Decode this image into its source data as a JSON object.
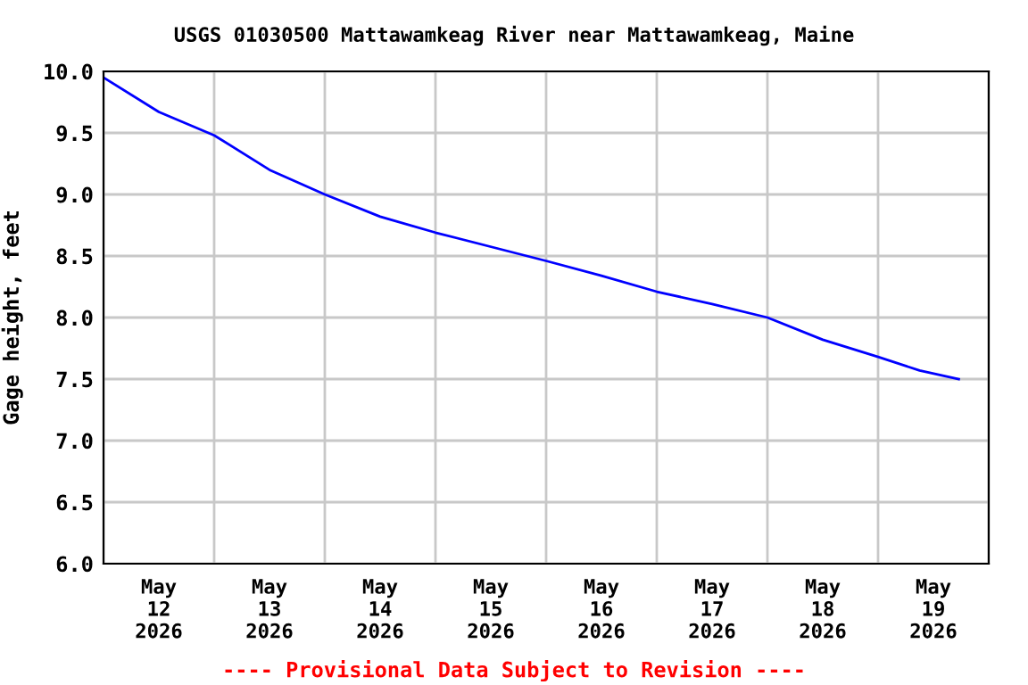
{
  "chart_data": {
    "type": "line",
    "title": "USGS 01030500 Mattawamkeag River near Mattawamkeag, Maine",
    "ylabel": "Gage height, feet",
    "x": [
      "2026-05-12T00:00",
      "2026-05-12T12:00",
      "2026-05-13T00:00",
      "2026-05-13T12:00",
      "2026-05-14T00:00",
      "2026-05-14T12:00",
      "2026-05-15T00:00",
      "2026-05-15T17:45",
      "2026-05-16T00:00",
      "2026-05-16T12:00",
      "2026-05-17T00:00",
      "2026-05-17T12:00",
      "2026-05-18T00:00",
      "2026-05-18T12:00",
      "2026-05-19T00:00",
      "2026-05-19T09:00",
      "2026-05-19T17:30"
    ],
    "series": [
      {
        "color": "#0000ff",
        "values": [
          9.95,
          9.67,
          9.48,
          9.2,
          9.0,
          8.82,
          8.69,
          8.52,
          8.46,
          8.34,
          8.21,
          8.11,
          8.0,
          7.82,
          7.68,
          7.57,
          7.5
        ]
      }
    ],
    "xlim": [
      "2026-05-12T00:00",
      "2026-05-20T00:00"
    ],
    "xticks": [
      {
        "value": "2026-05-12T00:00",
        "label": null
      },
      {
        "value": "2026-05-12T12:00",
        "label": "May\n12\n2026"
      },
      {
        "value": "2026-05-13T00:00",
        "label": null
      },
      {
        "value": "2026-05-13T12:00",
        "label": "May\n13\n2026"
      },
      {
        "value": "2026-05-14T00:00",
        "label": null
      },
      {
        "value": "2026-05-14T12:00",
        "label": "May\n14\n2026"
      },
      {
        "value": "2026-05-15T00:00",
        "label": null
      },
      {
        "value": "2026-05-15T12:00",
        "label": "May\n15\n2026"
      },
      {
        "value": "2026-05-16T00:00",
        "label": null
      },
      {
        "value": "2026-05-16T12:00",
        "label": "May\n16\n2026"
      },
      {
        "value": "2026-05-17T00:00",
        "label": null
      },
      {
        "value": "2026-05-17T12:00",
        "label": "May\n17\n2026"
      },
      {
        "value": "2026-05-18T00:00",
        "label": null
      },
      {
        "value": "2026-05-18T12:00",
        "label": "May\n18\n2026"
      },
      {
        "value": "2026-05-19T00:00",
        "label": null
      },
      {
        "value": "2026-05-19T12:00",
        "label": "May\n19\n2026"
      },
      {
        "value": "2026-05-20T00:00",
        "label": null
      }
    ],
    "ylim": [
      6.0,
      10.0
    ],
    "yticks": [
      {
        "value": 6.0,
        "label": "6.0"
      },
      {
        "value": 6.5,
        "label": "6.5"
      },
      {
        "value": 7.0,
        "label": "7.0"
      },
      {
        "value": 7.5,
        "label": "7.5"
      },
      {
        "value": 8.0,
        "label": "8.0"
      },
      {
        "value": 8.5,
        "label": "8.5"
      },
      {
        "value": 9.0,
        "label": "9.0"
      },
      {
        "value": 9.5,
        "label": "9.5"
      },
      {
        "value": 10.0,
        "label": "10.0"
      }
    ],
    "grid": true,
    "legend": false,
    "marker": "none",
    "line_style": "solid",
    "annotations": [
      "---- Provisional Data Subject to Revision ----"
    ]
  }
}
